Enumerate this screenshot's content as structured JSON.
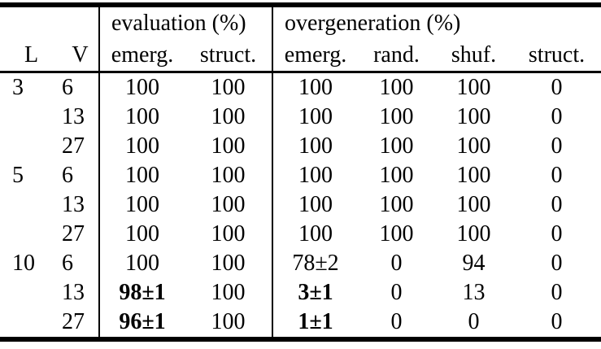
{
  "table": {
    "header": {
      "l": "L",
      "v": "V",
      "groups": [
        {
          "label": "evaluation (%)",
          "cols": [
            "emerg.",
            "struct."
          ]
        },
        {
          "label": "overgeneration (%)",
          "cols": [
            "emerg.",
            "rand.",
            "shuf.",
            "struct."
          ]
        }
      ]
    },
    "rows": [
      {
        "L": "3",
        "V": "6",
        "eval": [
          {
            "t": "100"
          },
          {
            "t": "100"
          }
        ],
        "over": [
          {
            "t": "100"
          },
          {
            "t": "100"
          },
          {
            "t": "100"
          },
          {
            "t": "0"
          }
        ]
      },
      {
        "L": "",
        "V": "13",
        "eval": [
          {
            "t": "100"
          },
          {
            "t": "100"
          }
        ],
        "over": [
          {
            "t": "100"
          },
          {
            "t": "100"
          },
          {
            "t": "100"
          },
          {
            "t": "0"
          }
        ]
      },
      {
        "L": "",
        "V": "27",
        "eval": [
          {
            "t": "100"
          },
          {
            "t": "100"
          }
        ],
        "over": [
          {
            "t": "100"
          },
          {
            "t": "100"
          },
          {
            "t": "100"
          },
          {
            "t": "0"
          }
        ]
      },
      {
        "L": "5",
        "V": "6",
        "eval": [
          {
            "t": "100"
          },
          {
            "t": "100"
          }
        ],
        "over": [
          {
            "t": "100"
          },
          {
            "t": "100"
          },
          {
            "t": "100"
          },
          {
            "t": "0"
          }
        ]
      },
      {
        "L": "",
        "V": "13",
        "eval": [
          {
            "t": "100"
          },
          {
            "t": "100"
          }
        ],
        "over": [
          {
            "t": "100"
          },
          {
            "t": "100"
          },
          {
            "t": "100"
          },
          {
            "t": "0"
          }
        ]
      },
      {
        "L": "",
        "V": "27",
        "eval": [
          {
            "t": "100"
          },
          {
            "t": "100"
          }
        ],
        "over": [
          {
            "t": "100"
          },
          {
            "t": "100"
          },
          {
            "t": "100"
          },
          {
            "t": "0"
          }
        ]
      },
      {
        "L": "10",
        "V": "6",
        "eval": [
          {
            "t": "100"
          },
          {
            "t": "100"
          }
        ],
        "over": [
          {
            "t": "78±2"
          },
          {
            "t": "0"
          },
          {
            "t": "94"
          },
          {
            "t": "0"
          }
        ]
      },
      {
        "L": "",
        "V": "13",
        "eval": [
          {
            "t": "98±1",
            "bold": true
          },
          {
            "t": "100"
          }
        ],
        "over": [
          {
            "t": "3±1",
            "bold": true
          },
          {
            "t": "0"
          },
          {
            "t": "13"
          },
          {
            "t": "0"
          }
        ]
      },
      {
        "L": "",
        "V": "27",
        "eval": [
          {
            "t": "96±1",
            "bold": true
          },
          {
            "t": "100"
          }
        ],
        "over": [
          {
            "t": "1±1",
            "bold": true
          },
          {
            "t": "0"
          },
          {
            "t": "0"
          },
          {
            "t": "0"
          }
        ]
      }
    ],
    "colors": {
      "text": "#000000",
      "background": "#ffffff",
      "rule": "#000000"
    }
  }
}
